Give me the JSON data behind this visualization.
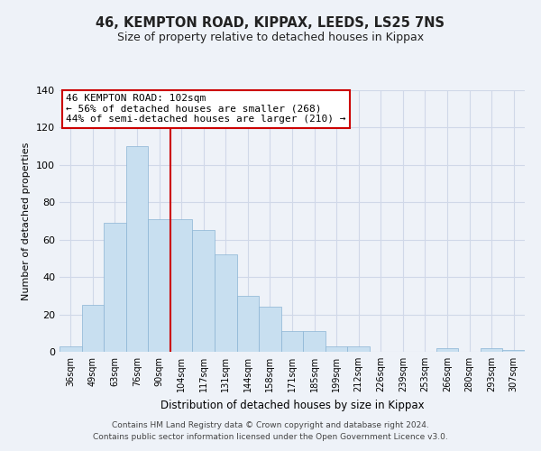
{
  "title": "46, KEMPTON ROAD, KIPPAX, LEEDS, LS25 7NS",
  "subtitle": "Size of property relative to detached houses in Kippax",
  "xlabel": "Distribution of detached houses by size in Kippax",
  "ylabel": "Number of detached properties",
  "bin_labels": [
    "36sqm",
    "49sqm",
    "63sqm",
    "76sqm",
    "90sqm",
    "104sqm",
    "117sqm",
    "131sqm",
    "144sqm",
    "158sqm",
    "171sqm",
    "185sqm",
    "199sqm",
    "212sqm",
    "226sqm",
    "239sqm",
    "253sqm",
    "266sqm",
    "280sqm",
    "293sqm",
    "307sqm"
  ],
  "bar_heights": [
    3,
    25,
    69,
    110,
    71,
    71,
    65,
    52,
    30,
    24,
    11,
    11,
    3,
    3,
    0,
    0,
    0,
    2,
    0,
    2,
    1
  ],
  "bar_color": "#c8dff0",
  "bar_edge_color": "#8ab4d4",
  "vline_x_index": 5,
  "vline_color": "#cc0000",
  "annotation_lines": [
    "46 KEMPTON ROAD: 102sqm",
    "← 56% of detached houses are smaller (268)",
    "44% of semi-detached houses are larger (210) →"
  ],
  "annotation_box_color": "#ffffff",
  "annotation_box_edge": "#cc0000",
  "ylim": [
    0,
    140
  ],
  "yticks": [
    0,
    20,
    40,
    60,
    80,
    100,
    120,
    140
  ],
  "grid_color": "#d0d8e8",
  "footer_lines": [
    "Contains HM Land Registry data © Crown copyright and database right 2024.",
    "Contains public sector information licensed under the Open Government Licence v3.0."
  ],
  "background_color": "#eef2f8"
}
